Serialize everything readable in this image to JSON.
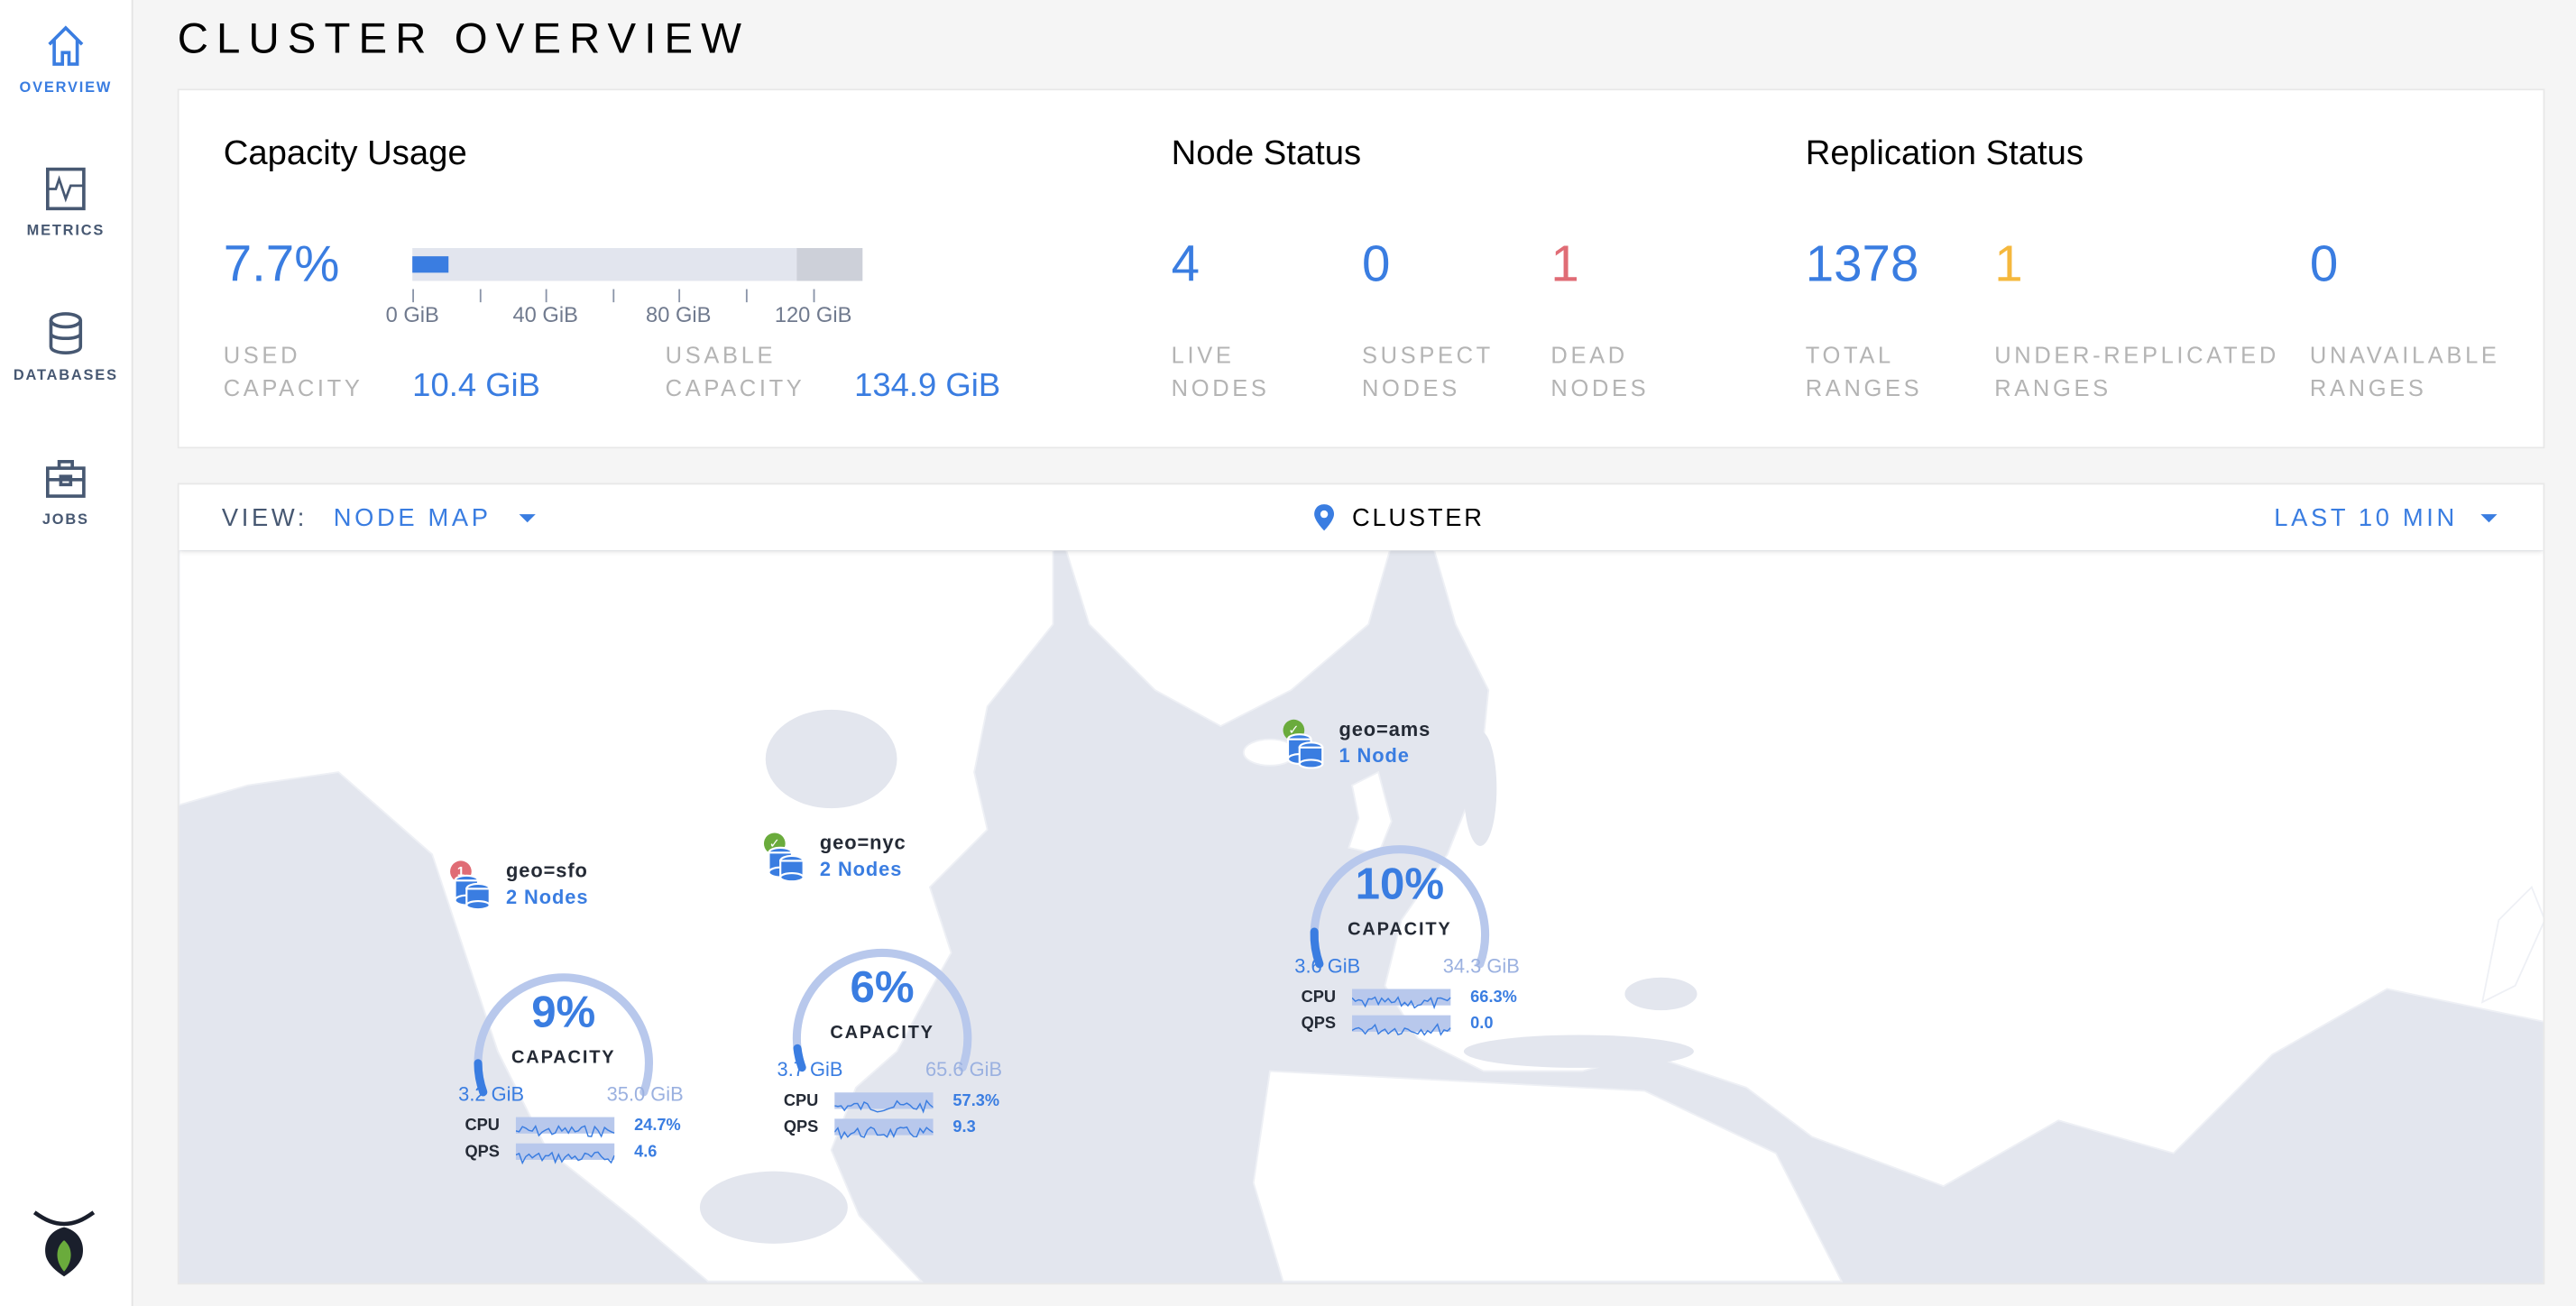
{
  "sidebar": {
    "items": [
      {
        "label": "OVERVIEW",
        "icon": "home-icon",
        "active": true
      },
      {
        "label": "METRICS",
        "icon": "metrics-icon"
      },
      {
        "label": "DATABASES",
        "icon": "database-icon"
      },
      {
        "label": "JOBS",
        "icon": "jobs-icon"
      }
    ],
    "logo": "cockroach-logo"
  },
  "page_title": "CLUSTER OVERVIEW",
  "capacity": {
    "title": "Capacity Usage",
    "percent": "7.7%",
    "used_fraction": 0.077,
    "usable_fraction": 0.89,
    "ticks": [
      "0 GiB",
      "40 GiB",
      "80 GiB",
      "120 GiB"
    ],
    "used_label": "USED CAPACITY",
    "used_value": "10.4 GiB",
    "usable_label": "USABLE CAPACITY",
    "usable_value": "134.9 GiB"
  },
  "node_status": {
    "title": "Node Status",
    "stats": [
      {
        "value": "4",
        "label": "LIVE NODES"
      },
      {
        "value": "0",
        "label": "SUSPECT NODES"
      },
      {
        "value": "1",
        "label": "DEAD NODES"
      }
    ]
  },
  "replication": {
    "title": "Replication Status",
    "stats": [
      {
        "value": "1378",
        "label": "TOTAL RANGES"
      },
      {
        "value": "1",
        "label": "UNDER-REPLICATED RANGES"
      },
      {
        "value": "0",
        "label": "UNAVAILABLE RANGES"
      }
    ]
  },
  "colors": {
    "accent": "#3a7de1",
    "dead": "#e06c75",
    "warning": "#f5b83d",
    "ok": "#6aab3c"
  },
  "map_header": {
    "view_label": "VIEW:",
    "view_value": "NODE MAP",
    "location": "CLUSTER",
    "time_range": "LAST 10 MIN"
  },
  "localities": [
    {
      "name": "geo=sfo",
      "nodes": "2 Nodes",
      "status": "dead",
      "badge": "1",
      "capacity_percent": 9,
      "percent_label": "9%",
      "capacity_label": "CAPACITY",
      "used": "3.2 GiB",
      "usable": "35.0 GiB",
      "cpu_label": "CPU",
      "cpu": "24.7%",
      "qps_label": "QPS",
      "qps": "4.6"
    },
    {
      "name": "geo=nyc",
      "nodes": "2 Nodes",
      "status": "ok",
      "badge": "",
      "capacity_percent": 6,
      "percent_label": "6%",
      "capacity_label": "CAPACITY",
      "used": "3.7 GiB",
      "usable": "65.6 GiB",
      "cpu_label": "CPU",
      "cpu": "57.3%",
      "qps_label": "QPS",
      "qps": "9.3"
    },
    {
      "name": "geo=ams",
      "nodes": "1 Node",
      "status": "ok",
      "badge": "",
      "capacity_percent": 10,
      "percent_label": "10%",
      "capacity_label": "CAPACITY",
      "used": "3.6 GiB",
      "usable": "34.3 GiB",
      "cpu_label": "CPU",
      "cpu": "66.3%",
      "qps_label": "QPS",
      "qps": "0.0"
    }
  ]
}
